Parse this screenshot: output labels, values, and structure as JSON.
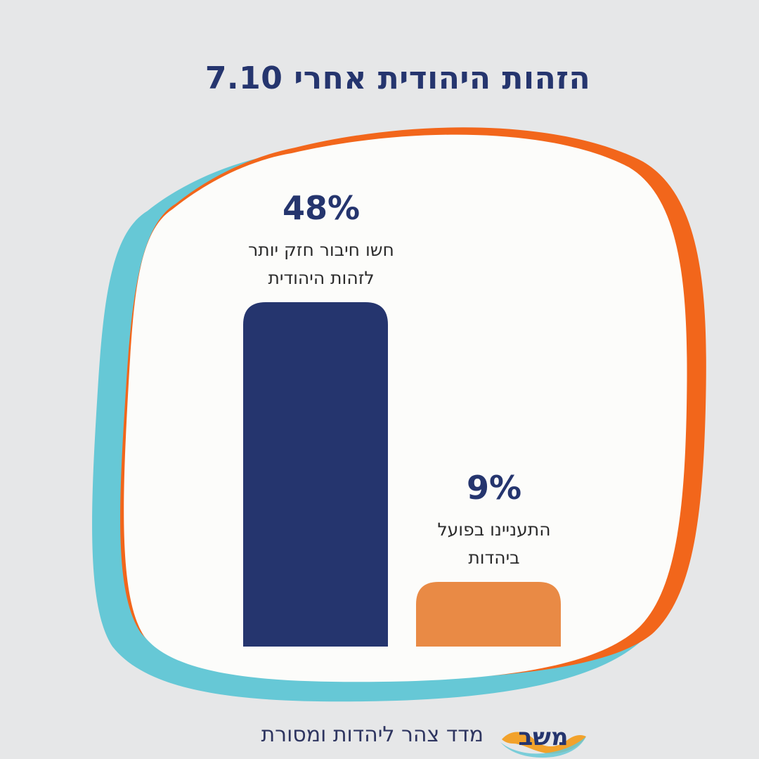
{
  "title": "הזהות היהודית אחרי 7.10",
  "footer": {
    "text": "מדד צהר ליהדות ומסורת",
    "logo_text": "משב"
  },
  "colors": {
    "background": "#e6e7e8",
    "blob_fill": "#fcfcfa",
    "blob_orange": "#f2661b",
    "blob_teal": "#66c8d6",
    "bar_navy": "#25356e",
    "bar_orange": "#e98a45",
    "text_navy": "#25356e",
    "label_text": "#2b2b2b"
  },
  "chart_data": {
    "type": "bar",
    "categories": [
      "חשו חיבור חזק יותר לזהות היהודית",
      "התעניינו בפועל ביהדות"
    ],
    "values": [
      48,
      9
    ],
    "value_labels": [
      "48%",
      "9%"
    ],
    "label_lines": [
      [
        "חשו חיבור חזק יותר",
        "לזהות היהודית"
      ],
      [
        "התעניינו בפועל",
        "ביהדות"
      ]
    ],
    "colors": [
      "#25356e",
      "#e98a45"
    ],
    "ylim": [
      0,
      48
    ],
    "grid": false,
    "legend": "none",
    "title": "הזהות היהודית אחרי 7.10"
  }
}
